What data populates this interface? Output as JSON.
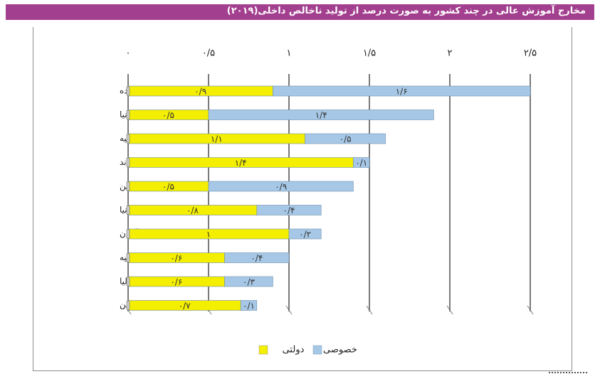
{
  "title": "مخارج آموزش عالی در چند کشور به صورت درصد از تولید ناخالص داخلی(۲۰۱۹)",
  "colors": {
    "title_bar": "#a33f8f",
    "public": "#f4ee00",
    "private": "#a6c8e6"
  },
  "chart_data": {
    "type": "bar",
    "orientation": "horizontal",
    "stacked": true,
    "categories": [
      "ایالات متحده",
      "بریتانیا",
      "ترکیه",
      "فنلاند",
      "ژاپن",
      "اسپانیا",
      "آلمان",
      "روسیه",
      "ایتالیا",
      "یونان"
    ],
    "series": [
      {
        "name": "دولتی",
        "color": "#f4ee00",
        "values": [
          0.9,
          0.5,
          1.1,
          1.4,
          0.5,
          0.8,
          1,
          0.6,
          0.6,
          0.7
        ]
      },
      {
        "name": "خصوصی",
        "color": "#a6c8e6",
        "values": [
          1.6,
          1.4,
          0.5,
          0.1,
          0.9,
          0.4,
          0.2,
          0.4,
          0.3,
          0.1
        ]
      }
    ],
    "data_labels": [
      [
        "۰/۹",
        "۰/۵",
        "۱/۱",
        "۱/۴",
        "۰/۵",
        "۰/۸",
        "۱",
        "۰/۶",
        "۰/۶",
        "۰/۷"
      ],
      [
        "۱/۶",
        "۱/۴",
        "۰/۵",
        "۰/۱",
        "۰/۹",
        "۰/۴",
        "۰/۲",
        "۰/۴",
        "۰/۳",
        "۰/۱"
      ]
    ],
    "ticks": [
      0,
      0.5,
      1,
      1.5,
      2,
      2.5
    ],
    "tick_labels": [
      "۰",
      "۰/۵",
      "۱",
      "۱/۵",
      "۲",
      "۲/۵"
    ],
    "xlim": [
      0,
      2.5
    ],
    "grid": true,
    "legend_position": "bottom"
  }
}
